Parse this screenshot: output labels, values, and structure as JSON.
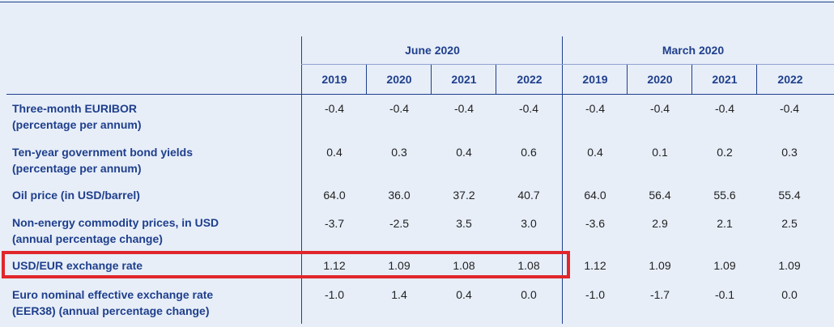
{
  "table": {
    "groups": [
      {
        "label": "June 2020",
        "years": [
          "2019",
          "2020",
          "2021",
          "2022"
        ]
      },
      {
        "label": "March 2020",
        "years": [
          "2019",
          "2020",
          "2021",
          "2022"
        ]
      }
    ],
    "rows": [
      {
        "label": "Three-month EURIBOR",
        "sublabel": "(percentage per annum)",
        "values": [
          "-0.4",
          "-0.4",
          "-0.4",
          "-0.4",
          "-0.4",
          "-0.4",
          "-0.4",
          "-0.4"
        ]
      },
      {
        "label": "Ten-year government bond yields",
        "sublabel": "(percentage per annum)",
        "values": [
          "0.4",
          "0.3",
          "0.4",
          "0.6",
          "0.4",
          "0.1",
          "0.2",
          "0.3"
        ]
      },
      {
        "label": "Oil price (in USD/barrel)",
        "sublabel": "",
        "values": [
          "64.0",
          "36.0",
          "37.2",
          "40.7",
          "64.0",
          "56.4",
          "55.6",
          "55.4"
        ]
      },
      {
        "label": "Non-energy commodity prices, in USD",
        "sublabel": "(annual percentage change)",
        "values": [
          "-3.7",
          "-2.5",
          "3.5",
          "3.0",
          "-3.6",
          "2.9",
          "2.1",
          "2.5"
        ]
      },
      {
        "label": "USD/EUR exchange rate",
        "sublabel": "",
        "values": [
          "1.12",
          "1.09",
          "1.08",
          "1.08",
          "1.12",
          "1.09",
          "1.09",
          "1.09"
        ]
      },
      {
        "label": "Euro nominal effective exchange rate",
        "sublabel": "(EER38) (annual percentage change)",
        "values": [
          "-1.0",
          "1.4",
          "0.4",
          "0.0",
          "-1.0",
          "-1.7",
          "-0.1",
          "0.0"
        ]
      }
    ]
  },
  "colors": {
    "header_text": "#1f3f8c",
    "highlight": "#e0262b",
    "background": "#e7eef8"
  }
}
